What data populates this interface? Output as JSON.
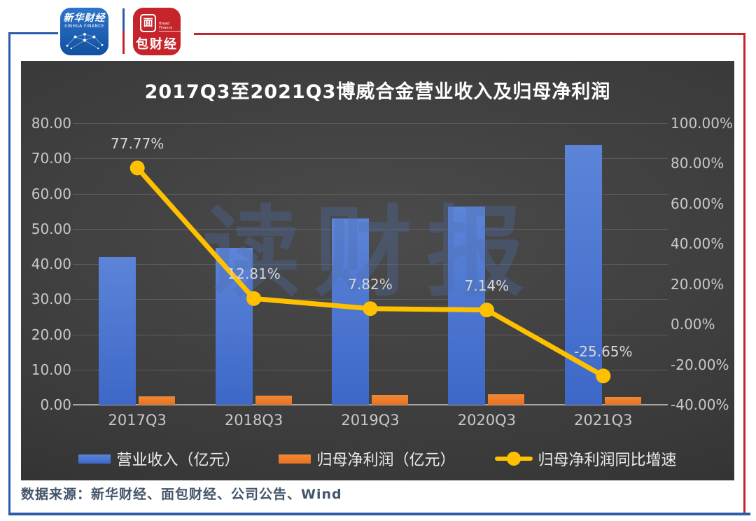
{
  "header": {
    "xinhua_logo": {
      "name_cn": "新华财经",
      "name_en": "XINHUA FINANCE"
    },
    "bread_logo": {
      "boxed_char": "面",
      "name_rest": "包财经",
      "name_en": "Bread Finance"
    }
  },
  "chart_data": {
    "type": "combo bar-line",
    "title": "2017Q3至2021Q3博威合金营业收入及归母净利润",
    "categories": [
      "2017Q3",
      "2018Q3",
      "2019Q3",
      "2020Q3",
      "2021Q3"
    ],
    "series": [
      {
        "name": "营业收入（亿元）",
        "type": "bar",
        "axis": "left",
        "color": "#3d68c8",
        "color_light": "#5c84d8",
        "values": [
          42.0,
          44.5,
          52.9,
          56.3,
          73.9
        ]
      },
      {
        "name": "归母净利润（亿元）",
        "type": "bar",
        "axis": "left",
        "color": "#e8711f",
        "color_light": "#f08938",
        "values": [
          2.32,
          2.62,
          2.82,
          3.02,
          2.25
        ]
      },
      {
        "name": "归母净利润同比增速",
        "type": "line",
        "axis": "right",
        "color": "#ffc000",
        "values": [
          77.77,
          12.81,
          7.82,
          7.14,
          -25.65
        ],
        "point_labels": [
          "77.77%",
          "12.81%",
          "7.82%",
          "7.14%",
          "-25.65%"
        ]
      }
    ],
    "left_axis": {
      "min": 0,
      "max": 80,
      "step": 10,
      "labels": [
        "0.00",
        "10.00",
        "20.00",
        "30.00",
        "40.00",
        "50.00",
        "60.00",
        "70.00",
        "80.00"
      ]
    },
    "right_axis": {
      "min": -40,
      "max": 100,
      "step": 20,
      "labels": [
        "-40.00%",
        "-20.00%",
        "0.00%",
        "20.00%",
        "40.00%",
        "60.00%",
        "80.00%",
        "100.00%"
      ]
    },
    "watermark": "读财报",
    "grid": true,
    "legend_position": "bottom"
  },
  "footer": {
    "source": "数据来源：新华财经、面包财经、公司公告、Wind"
  },
  "colors": {
    "accent_blue": "#2a5caa",
    "accent_red": "#c5242b",
    "panel_bg": "#3a3a3a",
    "bar_blue": "#4472c4",
    "bar_orange": "#ed7d31",
    "line_yellow": "#ffc000"
  }
}
